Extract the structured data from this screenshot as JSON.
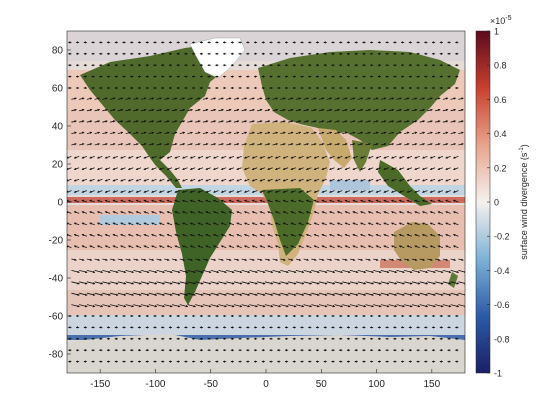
{
  "map": {
    "lon_ticks": [
      -150,
      -100,
      -50,
      0,
      50,
      100,
      150
    ],
    "lat_ticks": [
      80,
      60,
      40,
      20,
      0,
      -20,
      -40,
      -60,
      -80
    ],
    "lon_range": [
      -180,
      180
    ],
    "lat_range": [
      -90,
      90
    ],
    "projection": "equirectangular",
    "background": "satellite land imagery",
    "overlay": "surface wind divergence shading with wind vectors (arrows)"
  },
  "colorbar": {
    "label": "surface wind divergence (s",
    "label_sup": "-1",
    "label_close": ")",
    "exponent_base": "×10",
    "exponent": "-5",
    "ticks": [
      "1",
      "0.8",
      "0.6",
      "0.4",
      "0.2",
      "0",
      "-0.2",
      "-0.4",
      "-0.6",
      "-0.8",
      "-1"
    ],
    "range": [
      -1,
      1
    ],
    "colors": [
      "#1b1f66",
      "#2c5aa6",
      "#7fb2d6",
      "#f5f1ee",
      "#e8a48c",
      "#c8402f",
      "#5c0a1e"
    ]
  },
  "colors": {
    "ocean_neutral": "#e6dcd7",
    "land_green": "#4f6a2b",
    "desert": "#cfb27c",
    "ice": "#ffffff",
    "axis": "#262626"
  }
}
